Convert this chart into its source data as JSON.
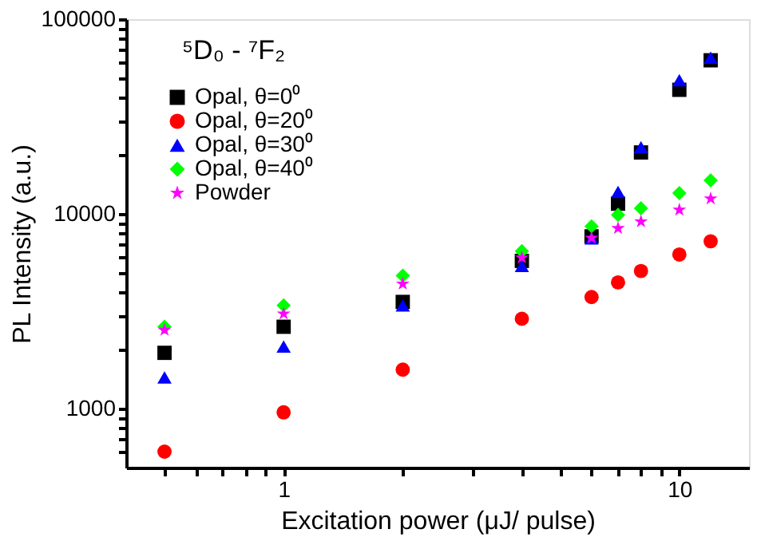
{
  "chart_data": {
    "type": "scatter",
    "xlabel": "Excitation power (μJ/ pulse)",
    "ylabel": "PL Intensity (a.u.)",
    "annotations": [
      "⁵D₀ - ⁷F₂"
    ],
    "x": [
      0.5,
      1,
      2,
      4,
      6,
      7,
      8,
      10,
      12
    ],
    "series": [
      {
        "name": "Opal, θ=0⁰",
        "color": "#000000",
        "marker": "square",
        "values": [
          1940,
          2640,
          3540,
          5750,
          7680,
          11300,
          20700,
          43400,
          61500
        ]
      },
      {
        "name": "Opal, θ=20⁰",
        "color": "#ff0000",
        "marker": "circle",
        "values": [
          604,
          960,
          1590,
          2900,
          3750,
          4460,
          5100,
          6200,
          7250
        ]
      },
      {
        "name": "Opal, θ=30⁰",
        "color": "#0000ff",
        "marker": "triangle",
        "values": [
          1450,
          2090,
          3400,
          5420,
          7500,
          13000,
          22000,
          48600,
          63500
        ]
      },
      {
        "name": "Opal, θ=40⁰",
        "color": "#00ff00",
        "marker": "diamond",
        "values": [
          2640,
          3400,
          4830,
          6450,
          8650,
          9900,
          10700,
          12800,
          14900
        ]
      },
      {
        "name": "Powder",
        "color": "#ff00ff",
        "marker": "star",
        "values": [
          2540,
          3080,
          4380,
          5970,
          7540,
          8450,
          9150,
          10500,
          12000
        ]
      }
    ],
    "log": "xy",
    "legend": "top left",
    "grid": false,
    "xlim": [
      0.4,
      15
    ],
    "xticks": [
      {
        "value": 0.5,
        "label": null
      },
      {
        "value": 0.6,
        "label": null
      },
      {
        "value": 0.7,
        "label": null
      },
      {
        "value": 0.8,
        "label": null
      },
      {
        "value": 0.9,
        "label": null
      },
      1,
      {
        "value": 2,
        "label": null
      },
      {
        "value": 3,
        "label": null
      },
      {
        "value": 4,
        "label": null
      },
      {
        "value": 5,
        "label": null
      },
      {
        "value": 6,
        "label": null
      },
      {
        "value": 7,
        "label": null
      },
      {
        "value": 8,
        "label": null
      },
      {
        "value": 9,
        "label": null
      },
      10
    ],
    "ylim": [
      500,
      100000
    ],
    "yticks": [
      {
        "value": 600,
        "label": null
      },
      {
        "value": 700,
        "label": null
      },
      {
        "value": 800,
        "label": null
      },
      {
        "value": 900,
        "label": null
      },
      1000,
      {
        "value": 2000,
        "label": null
      },
      {
        "value": 3000,
        "label": null
      },
      {
        "value": 4000,
        "label": null
      },
      {
        "value": 5000,
        "label": null
      },
      {
        "value": 6000,
        "label": null
      },
      {
        "value": 7000,
        "label": null
      },
      {
        "value": 8000,
        "label": null
      },
      {
        "value": 9000,
        "label": null
      },
      10000,
      {
        "value": 20000,
        "label": null
      },
      {
        "value": 30000,
        "label": null
      },
      {
        "value": 40000,
        "label": null
      },
      {
        "value": 50000,
        "label": null
      },
      {
        "value": 60000,
        "label": null
      },
      {
        "value": 70000,
        "label": null
      },
      {
        "value": 80000,
        "label": null
      },
      {
        "value": 90000,
        "label": null
      },
      100000
    ]
  }
}
